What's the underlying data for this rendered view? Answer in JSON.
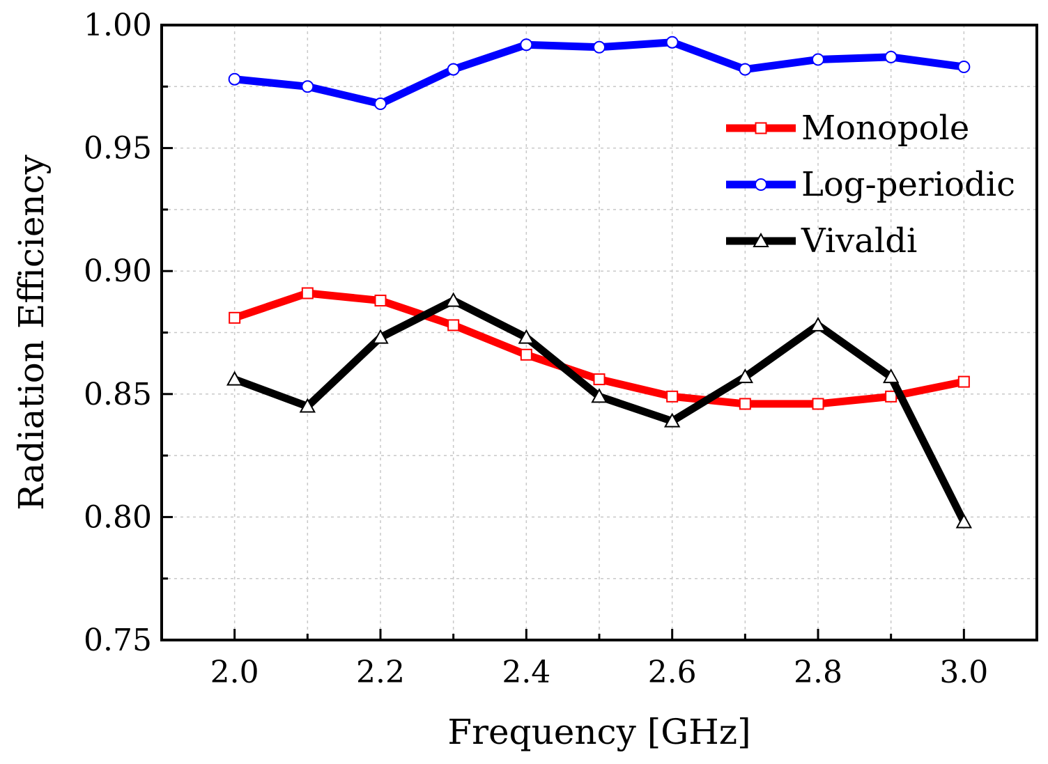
{
  "chart_data": {
    "type": "line",
    "title": "",
    "xlabel": "Frequency [GHz]",
    "ylabel": "Radiation Efficiency",
    "xlim": [
      1.9,
      3.1
    ],
    "ylim": [
      0.75,
      1.0
    ],
    "x": [
      2.0,
      2.1,
      2.2,
      2.3,
      2.4,
      2.5,
      2.6,
      2.7,
      2.8,
      2.9,
      3.0
    ],
    "xticks": [
      2.0,
      2.2,
      2.4,
      2.6,
      2.8,
      3.0
    ],
    "xtick_labels": [
      "2.0",
      "2.2",
      "2.4",
      "2.6",
      "2.8",
      "3.0"
    ],
    "yticks": [
      0.75,
      0.8,
      0.85,
      0.9,
      0.95,
      1.0
    ],
    "ytick_labels": [
      "0.75",
      "0.80",
      "0.85",
      "0.90",
      "0.95",
      "1.00"
    ],
    "grid": true,
    "legend_position": "top-right",
    "series": [
      {
        "name": "Monopole",
        "color": "#ff0000",
        "marker": "square",
        "values": [
          0.881,
          0.891,
          0.888,
          0.878,
          0.866,
          0.856,
          0.849,
          0.846,
          0.846,
          0.849,
          0.855
        ]
      },
      {
        "name": "Log-periodic",
        "color": "#0000ff",
        "marker": "circle",
        "values": [
          0.978,
          0.975,
          0.968,
          0.982,
          0.992,
          0.991,
          0.993,
          0.982,
          0.986,
          0.987,
          0.983
        ]
      },
      {
        "name": "Vivaldi",
        "color": "#000000",
        "marker": "triangle",
        "values": [
          0.856,
          0.845,
          0.873,
          0.888,
          0.873,
          0.849,
          0.839,
          0.857,
          0.878,
          0.857,
          0.798
        ]
      }
    ]
  }
}
